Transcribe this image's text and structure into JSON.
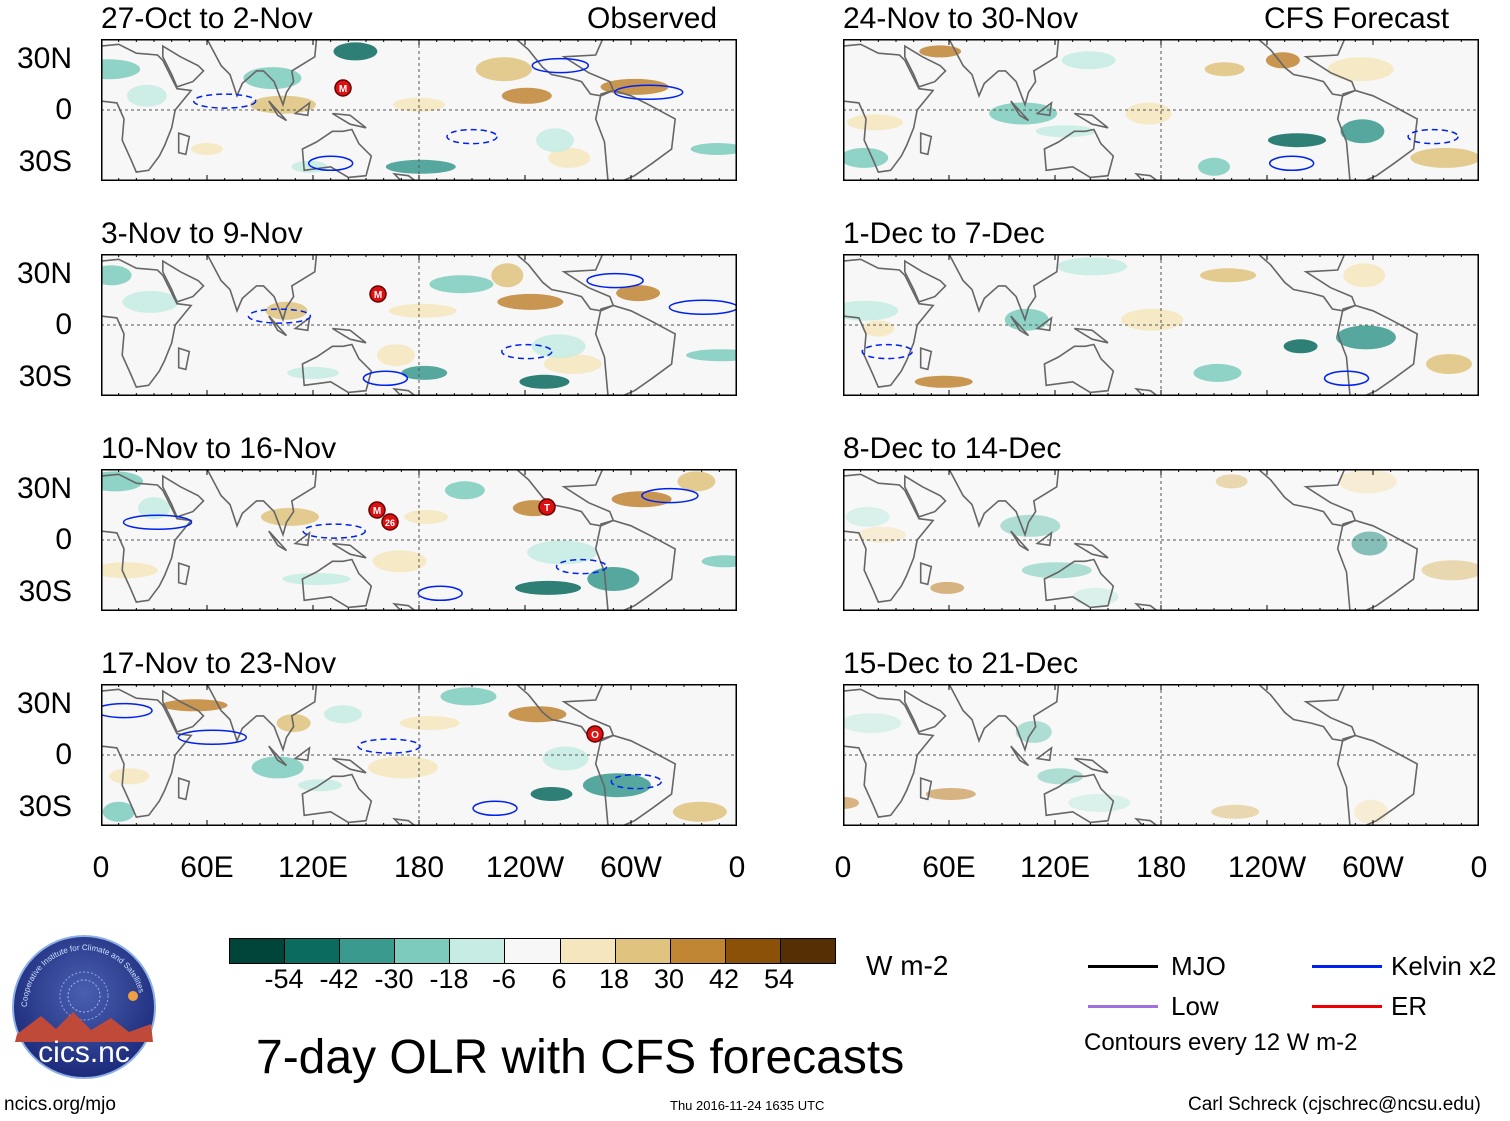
{
  "figure": {
    "title": "7-day OLR with CFS forecasts",
    "units": "W m-2",
    "website": "ncics.org/mjo",
    "timestamp": "Thu 2016-11-24 1635 UTC",
    "author": "Carl Schreck (cjschrec@ncsu.edu)",
    "logo_text": "cics.nc",
    "logo_ring_text": "Cooperative Institute for Climate and Satellites"
  },
  "columns": {
    "observed_label": "Observed",
    "forecast_label": "CFS Forecast"
  },
  "panels_observed": [
    {
      "title": "27-Oct to 2-Nov"
    },
    {
      "title": "3-Nov to 9-Nov"
    },
    {
      "title": "10-Nov to 16-Nov"
    },
    {
      "title": "17-Nov to 23-Nov"
    }
  ],
  "panels_forecast": [
    {
      "title": "24-Nov to 30-Nov"
    },
    {
      "title": "1-Dec to 7-Dec"
    },
    {
      "title": "8-Dec to 14-Dec"
    },
    {
      "title": "15-Dec to 21-Dec"
    }
  ],
  "axes": {
    "y_ticks": [
      "30N",
      "0",
      "30S"
    ],
    "x_ticks": [
      "0",
      "60E",
      "120E",
      "180",
      "120W",
      "60W",
      "0"
    ]
  },
  "colorbar": {
    "labels": [
      "-54",
      "-42",
      "-30",
      "-18",
      "-6",
      "6",
      "18",
      "30",
      "42",
      "54"
    ],
    "colors": [
      "#00443a",
      "#0b6b5f",
      "#3a9a8e",
      "#7dcbbd",
      "#c6ece3",
      "#f7f7f7",
      "#f6e6bd",
      "#dfc37e",
      "#bf8532",
      "#8c5109",
      "#543004"
    ]
  },
  "legend": {
    "items": [
      {
        "label": "MJO",
        "color": "#000000"
      },
      {
        "label": "Kelvin x2",
        "color": "#0022ee"
      },
      {
        "label": "Low",
        "color": "#a070e0"
      },
      {
        "label": "ER",
        "color": "#ee0000"
      }
    ],
    "note": "Contours every 12 W m-2"
  },
  "storm_markers": [
    {
      "panel": "observed-1",
      "label": "M"
    },
    {
      "panel": "observed-2",
      "label": "M"
    },
    {
      "panel": "observed-3",
      "label": "M"
    },
    {
      "panel": "observed-3",
      "label": "26"
    },
    {
      "panel": "observed-3",
      "label": "T"
    },
    {
      "panel": "observed-4",
      "label": "O"
    }
  ]
}
